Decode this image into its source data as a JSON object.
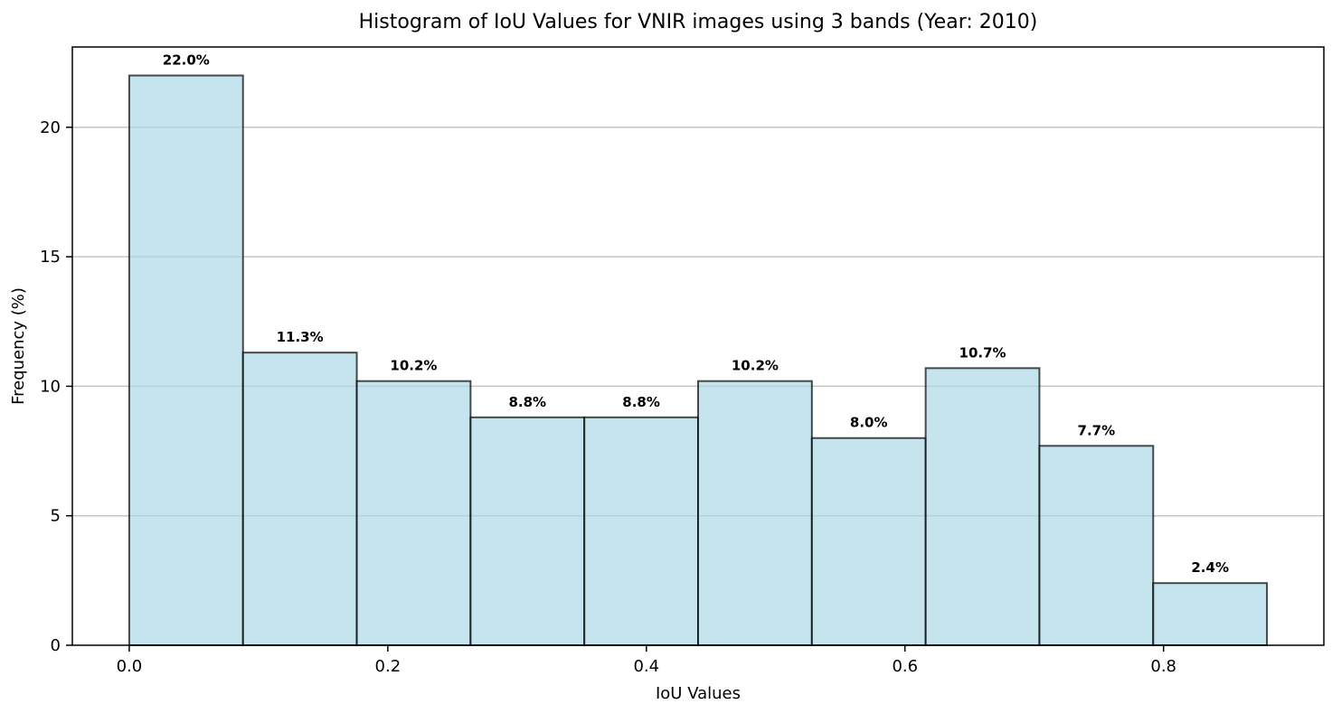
{
  "chart_data": {
    "type": "bar",
    "title": "Histogram of IoU Values for VNIR images using 3 bands (Year: 2010)",
    "xlabel": "IoU Values",
    "ylabel": "Frequency (%)",
    "bin_edges": [
      0.0,
      0.088,
      0.176,
      0.264,
      0.352,
      0.44,
      0.528,
      0.616,
      0.704,
      0.792,
      0.88
    ],
    "values": [
      22.0,
      11.3,
      10.2,
      8.8,
      8.8,
      10.2,
      8.0,
      10.7,
      7.7,
      2.4
    ],
    "value_labels": [
      "22.0%",
      "11.3%",
      "10.2%",
      "8.8%",
      "8.8%",
      "10.2%",
      "8.0%",
      "10.7%",
      "7.7%",
      "2.4%"
    ],
    "xlim": [
      -0.044,
      0.924
    ],
    "ylim": [
      0,
      23.1
    ],
    "x_ticks": [
      0.0,
      0.2,
      0.4,
      0.6,
      0.8
    ],
    "x_tick_labels": [
      "0.0",
      "0.2",
      "0.4",
      "0.6",
      "0.8"
    ],
    "y_ticks": [
      0,
      5,
      10,
      15,
      20
    ],
    "y_tick_labels": [
      "0",
      "5",
      "10",
      "15",
      "20"
    ],
    "grid": "y-axis",
    "legend": "none",
    "colors": {
      "bar_fill": "#add8e6",
      "bar_edge": "#000000",
      "grid": "#b0b0b0",
      "axis": "#000000"
    }
  }
}
